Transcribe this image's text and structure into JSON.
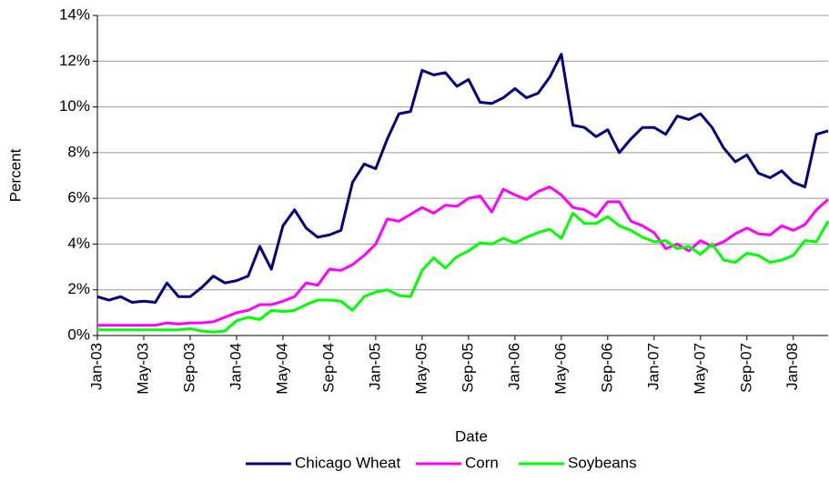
{
  "chart_data": {
    "type": "line",
    "y_label": "Percent",
    "x_label": "Date",
    "categories": [
      "Jan-03",
      null,
      null,
      null,
      "May-03",
      null,
      null,
      null,
      "Sep-03",
      null,
      null,
      null,
      "Jan-04",
      null,
      null,
      null,
      "May-04",
      null,
      null,
      null,
      "Sep-04",
      null,
      null,
      null,
      "Jan-05",
      null,
      null,
      null,
      "May-05",
      null,
      null,
      null,
      "Sep-05",
      null,
      null,
      null,
      "Jan-06",
      null,
      null,
      null,
      "May-06",
      null,
      null,
      null,
      "Sep-06",
      null,
      null,
      null,
      "Jan-07",
      null,
      null,
      null,
      "May-07",
      null,
      null,
      null,
      "Sep-07",
      null,
      null,
      null,
      "Jan-08",
      null,
      null,
      null
    ],
    "series": [
      {
        "name": "Chicago Wheat",
        "color": "#000080",
        "values": [
          1.7,
          1.55,
          1.7,
          1.45,
          1.5,
          1.45,
          2.3,
          1.7,
          1.7,
          2.1,
          2.6,
          2.3,
          2.4,
          2.6,
          3.9,
          2.9,
          4.8,
          5.5,
          4.7,
          4.3,
          4.4,
          4.6,
          6.7,
          7.5,
          7.3,
          8.6,
          9.7,
          9.8,
          11.6,
          11.4,
          11.5,
          10.9,
          11.2,
          10.2,
          10.15,
          10.4,
          10.8,
          10.4,
          10.6,
          11.3,
          12.3,
          9.2,
          9.1,
          8.7,
          9.0,
          8.0,
          8.6,
          9.1,
          9.1,
          8.8,
          9.6,
          9.45,
          9.7,
          9.1,
          8.2,
          7.6,
          7.9,
          7.1,
          6.9,
          7.2,
          6.7,
          6.5,
          8.8,
          8.95
        ]
      },
      {
        "name": "Corn",
        "color": "#ff00ff",
        "values": [
          0.45,
          0.45,
          0.45,
          0.45,
          0.45,
          0.45,
          0.55,
          0.5,
          0.55,
          0.55,
          0.6,
          0.8,
          1.0,
          1.1,
          1.35,
          1.35,
          1.5,
          1.7,
          2.3,
          2.2,
          2.9,
          2.85,
          3.1,
          3.5,
          4.0,
          5.1,
          5.0,
          5.3,
          5.6,
          5.35,
          5.7,
          5.65,
          6.0,
          6.1,
          5.4,
          6.4,
          6.15,
          5.95,
          6.3,
          6.5,
          6.15,
          5.6,
          5.5,
          5.2,
          5.85,
          5.85,
          5.0,
          4.8,
          4.5,
          3.8,
          4.0,
          3.7,
          4.15,
          3.9,
          4.1,
          4.45,
          4.7,
          4.45,
          4.4,
          4.8,
          4.6,
          4.85,
          5.5,
          5.95
        ]
      },
      {
        "name": "Soybeans",
        "color": "#00ff00",
        "values": [
          0.25,
          0.25,
          0.25,
          0.25,
          0.25,
          0.25,
          0.25,
          0.25,
          0.3,
          0.2,
          0.15,
          0.2,
          0.65,
          0.8,
          0.7,
          1.1,
          1.05,
          1.1,
          1.35,
          1.55,
          1.55,
          1.5,
          1.1,
          1.7,
          1.9,
          2.0,
          1.75,
          1.7,
          2.85,
          3.4,
          2.95,
          3.45,
          3.7,
          4.05,
          4.0,
          4.25,
          4.05,
          4.3,
          4.5,
          4.65,
          4.25,
          5.35,
          4.9,
          4.9,
          5.2,
          4.8,
          4.6,
          4.3,
          4.1,
          4.15,
          3.8,
          3.9,
          3.55,
          4.0,
          3.3,
          3.2,
          3.6,
          3.5,
          3.2,
          3.3,
          3.5,
          4.15,
          4.1,
          5.0
        ]
      }
    ],
    "ylim": [
      0,
      14
    ],
    "yticks": [
      {
        "value": 0,
        "label": "0%"
      },
      {
        "value": 2,
        "label": "2%"
      },
      {
        "value": 4,
        "label": "4%"
      },
      {
        "value": 6,
        "label": "6%"
      },
      {
        "value": 8,
        "label": "8%"
      },
      {
        "value": 10,
        "label": "10%"
      },
      {
        "value": 12,
        "label": "12%"
      },
      {
        "value": 14,
        "label": "14%"
      }
    ],
    "grid": true,
    "legend": "bottom"
  }
}
